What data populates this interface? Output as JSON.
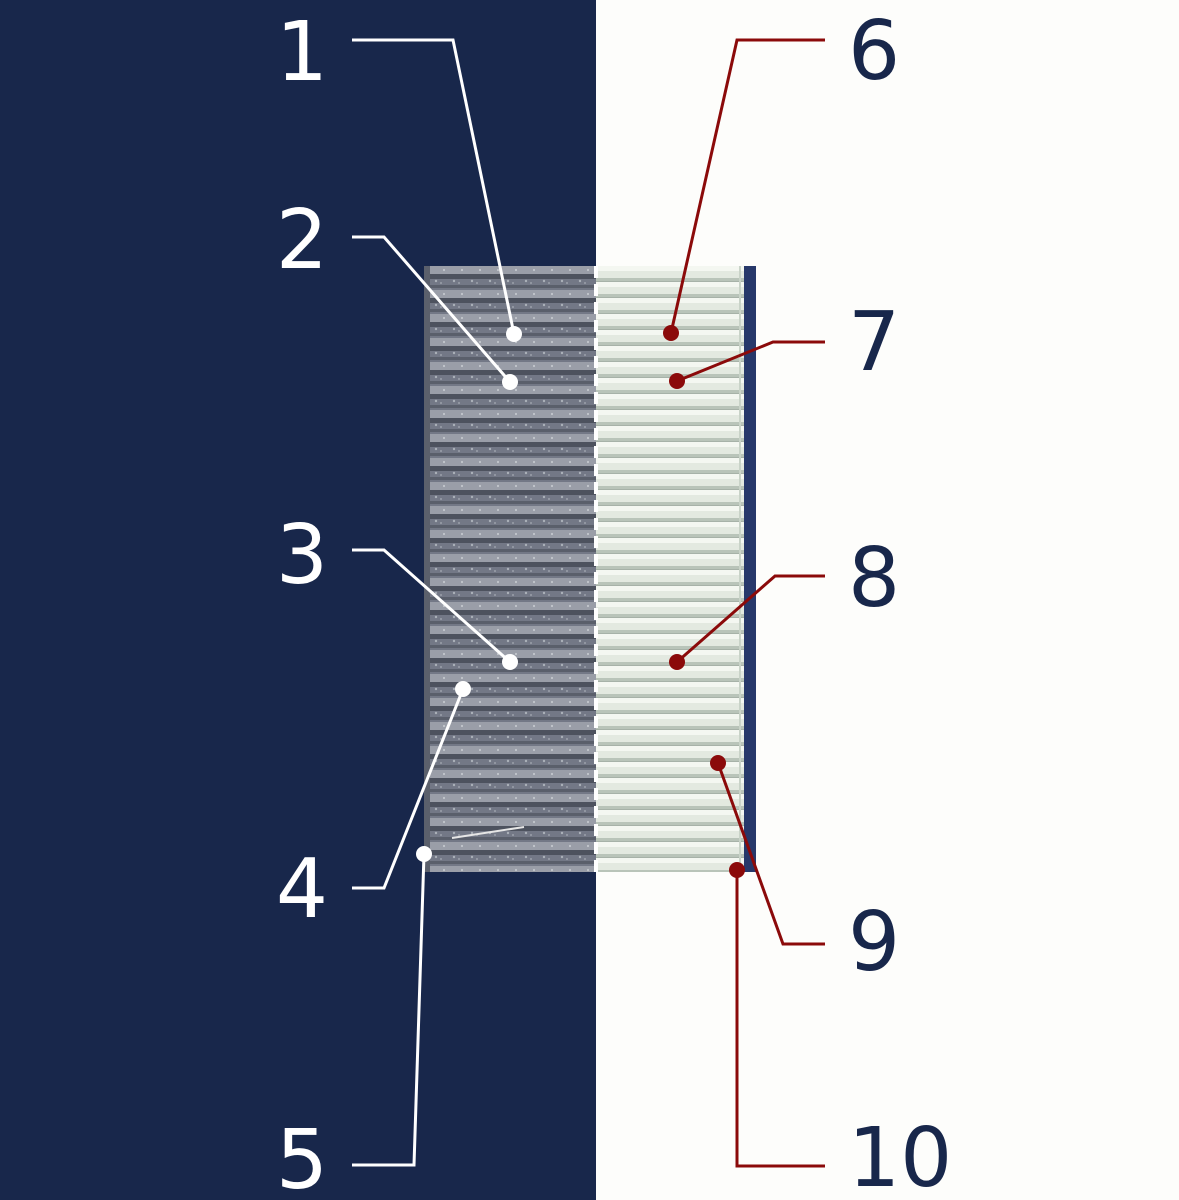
{
  "colors": {
    "left_background": "#18274b",
    "right_background": "#fdfdfb",
    "left_callout": "#ffffff",
    "right_callout": "#8b0a0a",
    "left_number": "#ffffff",
    "right_number": "#18274b",
    "carbon_media": "#6e7380",
    "white_media": "#dfe6dc"
  },
  "left_labels": [
    {
      "id": "1",
      "label": "1"
    },
    {
      "id": "2",
      "label": "2"
    },
    {
      "id": "3",
      "label": "3"
    },
    {
      "id": "4",
      "label": "4"
    },
    {
      "id": "5",
      "label": "5"
    }
  ],
  "right_labels": [
    {
      "id": "6",
      "label": "6"
    },
    {
      "id": "7",
      "label": "7"
    },
    {
      "id": "8",
      "label": "8"
    },
    {
      "id": "9",
      "label": "9"
    },
    {
      "id": "10",
      "label": "10"
    }
  ]
}
